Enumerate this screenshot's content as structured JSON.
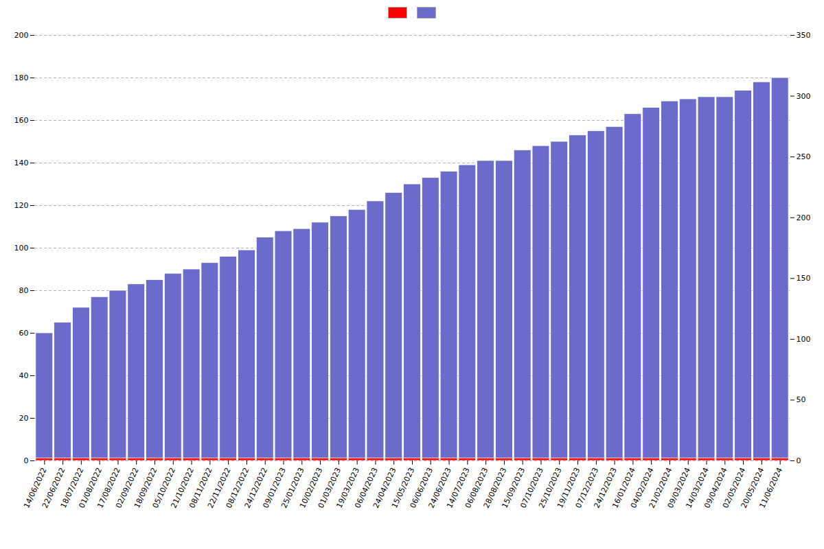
{
  "chart_data": {
    "type": "bar",
    "categories": [
      "14/06/2022",
      "22/06/2022",
      "18/07/2022",
      "01/08/2022",
      "17/08/2022",
      "02/09/2022",
      "18/09/2022",
      "05/10/2022",
      "21/10/2022",
      "08/11/2022",
      "22/11/2022",
      "08/12/2022",
      "24/12/2022",
      "09/01/2023",
      "25/01/2023",
      "10/02/2023",
      "01/03/2023",
      "19/03/2023",
      "06/04/2023",
      "24/04/2023",
      "15/05/2023",
      "06/06/2023",
      "24/06/2023",
      "14/07/2023",
      "06/08/2023",
      "28/08/2023",
      "15/09/2023",
      "07/10/2023",
      "25/10/2023",
      "19/11/2023",
      "07/12/2023",
      "24/12/2023",
      "16/01/2024",
      "04/02/2024",
      "21/02/2024",
      "09/03/2024",
      "14/03/2024",
      "09/04/2024",
      "02/05/2024",
      "20/05/2024",
      "11/06/2024"
    ],
    "series": [
      {
        "color": "#6b6bcc",
        "values": [
          60,
          65,
          72,
          77,
          80,
          83,
          85,
          88,
          90,
          93,
          96,
          99,
          105,
          108,
          109,
          112,
          115,
          118,
          122,
          126,
          130,
          133,
          136,
          139,
          141,
          141,
          146,
          148,
          150,
          153,
          155,
          157,
          163,
          166,
          169,
          170,
          171,
          171,
          174,
          178,
          180
        ]
      },
      {
        "color": "#ff0000",
        "values": [
          1.2,
          1.2,
          1.2,
          1.2,
          1.2,
          1.2,
          1.2,
          1.2,
          1.2,
          1.2,
          1.2,
          1.2,
          1.2,
          1.2,
          1.2,
          1.2,
          1.2,
          1.2,
          1.2,
          1.2,
          1.2,
          1.2,
          1.2,
          1.2,
          1.2,
          1.2,
          1.2,
          1.2,
          1.2,
          1.2,
          1.2,
          1.2,
          1.2,
          1.2,
          1.2,
          1.2,
          1.2,
          1.2,
          1.2,
          1.2,
          1.2
        ]
      }
    ],
    "ylim": [
      0,
      200
    ],
    "yticks": [
      0,
      20,
      40,
      60,
      80,
      100,
      120,
      140,
      160,
      180,
      200
    ],
    "y2lim": [
      0,
      350
    ],
    "y2ticks": [
      0,
      50,
      100,
      150,
      200,
      250,
      300,
      350
    ],
    "grid": true,
    "legend": "top"
  }
}
